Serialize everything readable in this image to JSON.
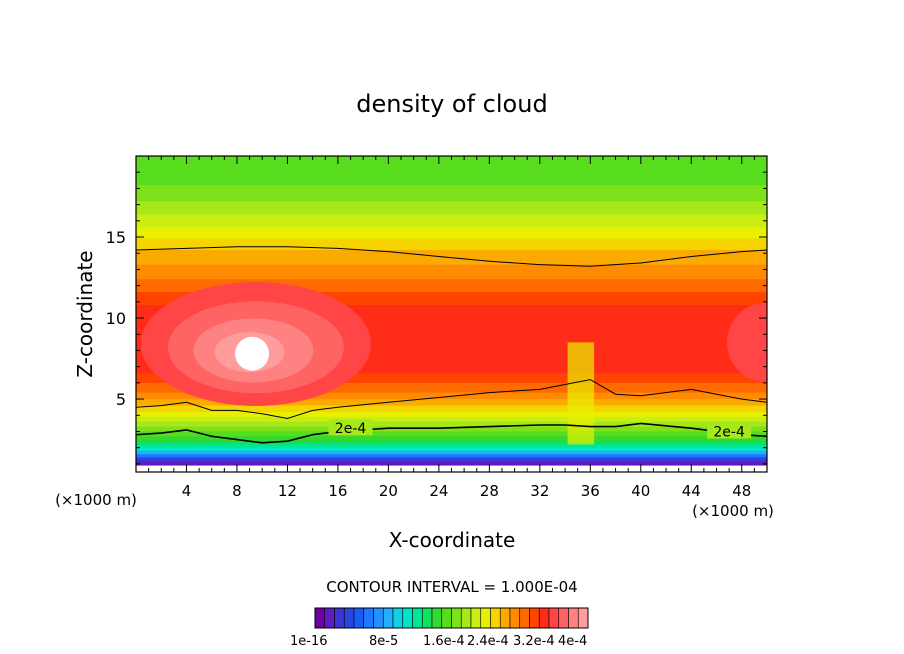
{
  "chart_data": {
    "type": "heatmap",
    "title": "density of cloud",
    "xlabel": "X-coordinate",
    "ylabel": "Z-coordinate",
    "x_unit_left": "(×1000 m)",
    "x_unit_right": "(×1000 m)",
    "xlim": [
      0,
      50
    ],
    "ylim": [
      0.5,
      20
    ],
    "x_ticks": [
      4,
      8,
      12,
      16,
      20,
      24,
      28,
      32,
      36,
      40,
      44,
      48
    ],
    "y_ticks": [
      5,
      10,
      15
    ],
    "contour_interval_text": "CONTOUR INTERVAL = 1.000E-04",
    "contour_label": "2e-4",
    "colorbar_labels": [
      "1e-16",
      "8e-5",
      "1.6e-4",
      "2.4e-4",
      "3.2e-4",
      "4e-4"
    ],
    "colorbar_colors": [
      "#6e00a6",
      "#5a1fc2",
      "#3b34d6",
      "#2a45e0",
      "#1a5cf0",
      "#1f78ff",
      "#2392ff",
      "#20b0ff",
      "#10cfe8",
      "#00e4c8",
      "#00e69a",
      "#12e060",
      "#32da30",
      "#58dc1e",
      "#7ee21a",
      "#a6e81a",
      "#c8ee14",
      "#e8f000",
      "#f6d400",
      "#faaa00",
      "#ff8c00",
      "#ff6a00",
      "#ff4300",
      "#ff2d18",
      "#ff4545",
      "#ff6464",
      "#ff8282",
      "#ff9c9c"
    ],
    "series": [
      {
        "name": "2e-4",
        "x": [
          0,
          2,
          4,
          6,
          8,
          10,
          12,
          14,
          16,
          20,
          24,
          28,
          32,
          34,
          36,
          38,
          40,
          44,
          48,
          50
        ],
        "y": [
          2.8,
          2.9,
          3.1,
          2.7,
          2.5,
          2.3,
          2.4,
          2.8,
          3.0,
          3.2,
          3.2,
          3.3,
          3.4,
          3.4,
          3.3,
          3.3,
          3.5,
          3.2,
          2.8,
          2.7
        ]
      },
      {
        "name": "",
        "x": [
          0,
          2,
          4,
          6,
          8,
          10,
          12,
          14,
          16,
          20,
          24,
          28,
          32,
          36,
          38,
          40,
          44,
          48,
          50
        ],
        "y": [
          4.5,
          4.6,
          4.8,
          4.3,
          4.3,
          4.1,
          3.8,
          4.3,
          4.5,
          4.8,
          5.1,
          5.4,
          5.6,
          6.2,
          5.3,
          5.2,
          5.6,
          5.0,
          4.8
        ]
      },
      {
        "name": "",
        "x": [
          0,
          4,
          8,
          12,
          16,
          20,
          24,
          28,
          32,
          36,
          40,
          44,
          48,
          50
        ],
        "y": [
          14.2,
          14.3,
          14.4,
          14.4,
          14.3,
          14.1,
          13.8,
          13.5,
          13.3,
          13.2,
          13.4,
          13.8,
          14.1,
          14.2
        ]
      }
    ]
  }
}
